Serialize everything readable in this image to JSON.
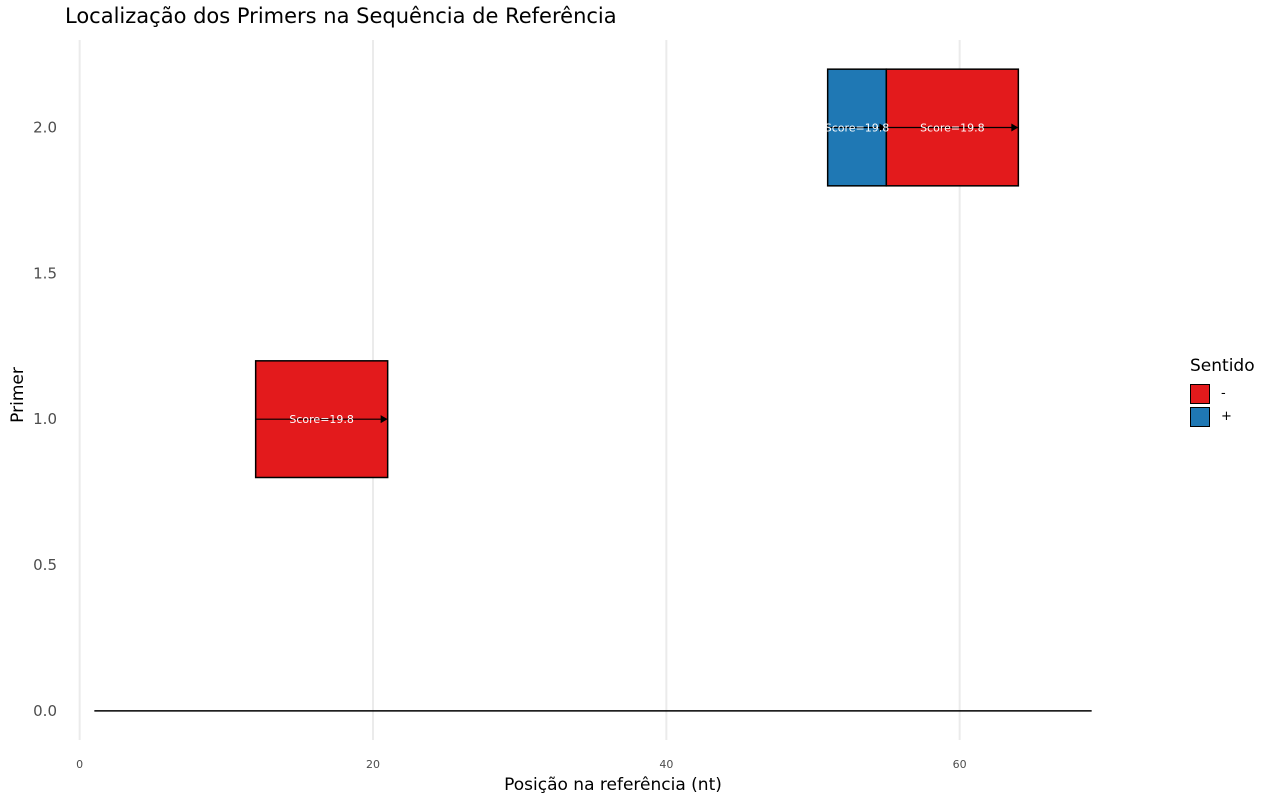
{
  "chart_data": {
    "type": "bar",
    "title": "Localização dos Primers na Sequência de Referência",
    "xlabel": "Posição na referência (nt)",
    "ylabel": "Primer",
    "xlim": [
      -1,
      71
    ],
    "ylim": [
      -0.1,
      2.3
    ],
    "x_ticks": [
      0,
      20,
      40,
      60
    ],
    "y_ticks": [
      "0.0",
      "0.5",
      "1.0",
      "1.5",
      "2.0"
    ],
    "grid": "vertical major",
    "reference_line": {
      "x_start": 1,
      "x_end": 69,
      "y": 0
    },
    "legend": {
      "title": "Sentido",
      "position": "right",
      "entries": [
        {
          "label": "-",
          "color": "#e31a1c"
        },
        {
          "label": "+",
          "color": "#1f78b4"
        }
      ]
    },
    "primers": [
      {
        "primer": 1,
        "start": 12,
        "end": 21,
        "sense": "-",
        "label": "Score=19.8",
        "color": "#e31a1c"
      },
      {
        "primer": 2,
        "start": 51,
        "end": 55,
        "sense": "+",
        "label": "Score=19.8",
        "color": "#1f78b4"
      },
      {
        "primer": 2,
        "start": 55,
        "end": 64,
        "sense": "-",
        "label": "Score=19.8",
        "color": "#e31a1c"
      }
    ]
  }
}
